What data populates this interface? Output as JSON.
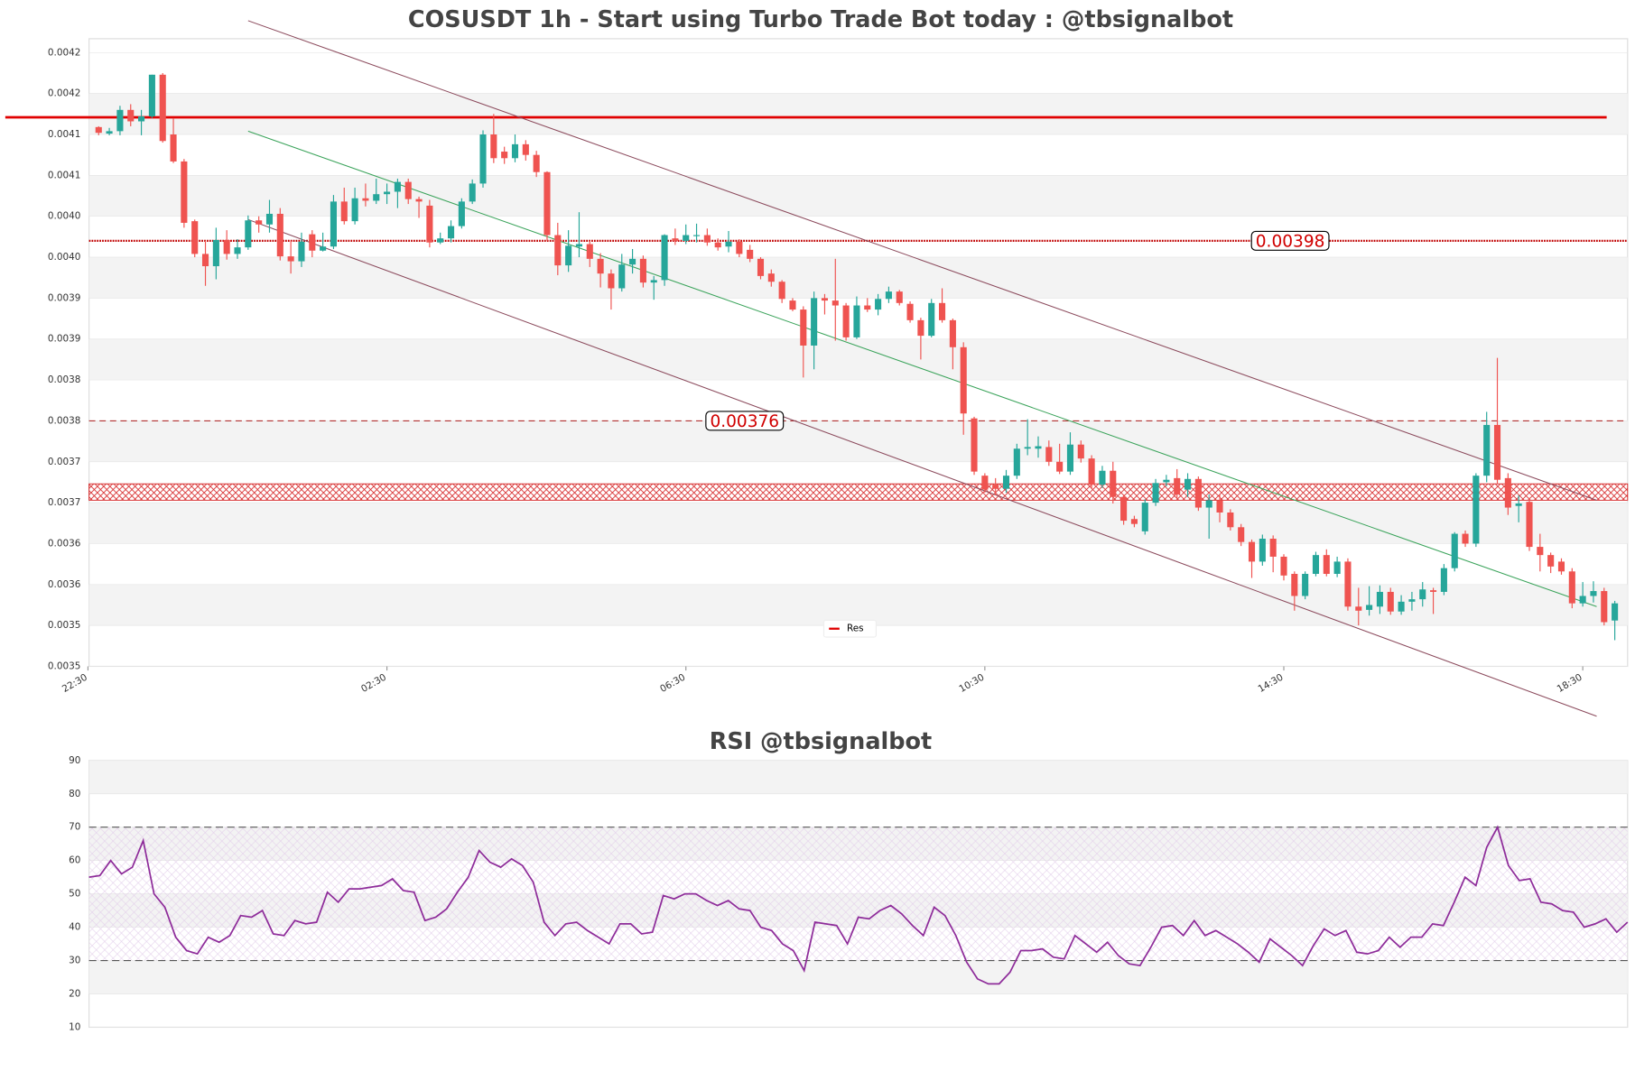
{
  "chart_data": [
    {
      "type": "candlestick",
      "title": "COSUSDT 1h - Start using Turbo Trade Bot today : @tbsignalbot",
      "up_color": "#26a69a",
      "down_color": "#ef5350",
      "open": [
        0.004119,
        0.004111,
        0.004114,
        0.00414,
        0.004126,
        0.004132,
        0.004183,
        0.00411,
        0.004077,
        0.004004,
        0.003964,
        0.003949,
        0.003981,
        0.003964,
        0.003972,
        0.004005,
        0.004,
        0.004013,
        0.003961,
        0.003955,
        0.003988,
        0.003968,
        0.003973,
        0.004028,
        0.004004,
        0.004032,
        0.004029,
        0.004037,
        0.00404,
        0.004052,
        0.004031,
        0.004023,
        0.003978,
        0.003983,
        0.003998,
        0.004028,
        0.00405,
        0.00411,
        0.004089,
        0.004081,
        0.004098,
        0.004085,
        0.004064,
        0.003987,
        0.00395,
        0.003973,
        0.003976,
        0.003958,
        0.00394,
        0.003922,
        0.003951,
        0.003958,
        0.003929,
        0.003932,
        0.003983,
        0.00398,
        0.003986,
        0.003987,
        0.003978,
        0.003973,
        0.003979,
        0.003969,
        0.003958,
        0.00394,
        0.00393,
        0.003907,
        0.003896,
        0.003852,
        0.00391,
        0.003907,
        0.003901,
        0.003862,
        0.003901,
        0.003896,
        0.003909,
        0.003918,
        0.003903,
        0.003883,
        0.003864,
        0.003904,
        0.003883,
        0.00385,
        0.003763,
        0.003693,
        0.003682,
        0.003677,
        0.003693,
        0.003726,
        0.003726,
        0.003728,
        0.00371,
        0.003698,
        0.003731,
        0.003714,
        0.003682,
        0.003699,
        0.003667,
        0.00364,
        0.003625,
        0.00366,
        0.003685,
        0.00369,
        0.003676,
        0.003689,
        0.003654,
        0.003663,
        0.003648,
        0.00363,
        0.003612,
        0.003588,
        0.003616,
        0.003594,
        0.003573,
        0.003546,
        0.003573,
        0.003596,
        0.003573,
        0.003588,
        0.003533,
        0.003529,
        0.003533,
        0.003551,
        0.003527,
        0.003539,
        0.003542,
        0.003553,
        0.003551,
        0.00358,
        0.003622,
        0.00361,
        0.003693,
        0.003755,
        0.00369,
        0.003656,
        0.003661,
        0.003606,
        0.003596,
        0.003588,
        0.003576,
        0.003537,
        0.003546,
        0.003552,
        0.003516
      ],
      "close": [
        0.004112,
        0.004114,
        0.00414,
        0.004126,
        0.004132,
        0.004183,
        0.004102,
        0.004077,
        0.004002,
        0.003964,
        0.003949,
        0.003981,
        0.003964,
        0.003972,
        0.004005,
        0.004,
        0.004013,
        0.003961,
        0.003955,
        0.003979,
        0.003968,
        0.003973,
        0.004028,
        0.004004,
        0.004032,
        0.004029,
        0.004037,
        0.00404,
        0.004052,
        0.004031,
        0.004028,
        0.003978,
        0.003983,
        0.003998,
        0.004028,
        0.00405,
        0.00411,
        0.004081,
        0.004081,
        0.004098,
        0.004085,
        0.004064,
        0.003987,
        0.00395,
        0.003974,
        0.003976,
        0.003958,
        0.00394,
        0.003922,
        0.003951,
        0.003958,
        0.003929,
        0.003932,
        0.003987,
        0.00398,
        0.003987,
        0.003987,
        0.003978,
        0.003972,
        0.003979,
        0.003964,
        0.003958,
        0.003937,
        0.00393,
        0.003909,
        0.003896,
        0.003852,
        0.00391,
        0.003907,
        0.003901,
        0.003862,
        0.003901,
        0.003896,
        0.003909,
        0.003918,
        0.003904,
        0.003883,
        0.003864,
        0.003904,
        0.003883,
        0.00385,
        0.003769,
        0.003698,
        0.003676,
        0.003677,
        0.003693,
        0.003726,
        0.003728,
        0.003729,
        0.00371,
        0.003698,
        0.003731,
        0.003714,
        0.003682,
        0.003699,
        0.003667,
        0.003638,
        0.003634,
        0.00366,
        0.003684,
        0.003688,
        0.00367,
        0.003689,
        0.003654,
        0.003663,
        0.003648,
        0.00363,
        0.003612,
        0.003588,
        0.003616,
        0.003594,
        0.003571,
        0.003546,
        0.003573,
        0.003596,
        0.003573,
        0.003588,
        0.003533,
        0.003528,
        0.003535,
        0.003551,
        0.003527,
        0.003539,
        0.003542,
        0.003554,
        0.003551,
        0.00358,
        0.003622,
        0.00361,
        0.003693,
        0.003755,
        0.003688,
        0.003654,
        0.003659,
        0.003606,
        0.003596,
        0.003582,
        0.003576,
        0.003537,
        0.003546,
        0.003552,
        0.003514,
        0.003537
      ],
      "high": [
        0.00412,
        0.004118,
        0.004145,
        0.004147,
        0.00414,
        0.004183,
        0.004185,
        0.00413,
        0.00408,
        0.004006,
        0.00398,
        0.003996,
        0.003993,
        0.003982,
        0.004011,
        0.00401,
        0.00403,
        0.00402,
        0.00398,
        0.00399,
        0.003993,
        0.00399,
        0.004036,
        0.004045,
        0.004045,
        0.00405,
        0.004056,
        0.00405,
        0.004056,
        0.004056,
        0.004034,
        0.00403,
        0.00399,
        0.004005,
        0.004032,
        0.004055,
        0.004115,
        0.004135,
        0.004095,
        0.00411,
        0.004103,
        0.00409,
        0.004065,
        0.004002,
        0.003993,
        0.004015,
        0.00398,
        0.003965,
        0.003945,
        0.003964,
        0.00397,
        0.003962,
        0.003937,
        0.003988,
        0.003995,
        0.004,
        0.004001,
        0.003995,
        0.003983,
        0.003992,
        0.003982,
        0.003975,
        0.00396,
        0.003945,
        0.003932,
        0.00391,
        0.0039,
        0.003918,
        0.003915,
        0.003958,
        0.003904,
        0.003912,
        0.00391,
        0.003915,
        0.003924,
        0.00392,
        0.003906,
        0.003886,
        0.003909,
        0.003922,
        0.003885,
        0.003856,
        0.003765,
        0.003696,
        0.00369,
        0.0037,
        0.003732,
        0.003762,
        0.003741,
        0.003736,
        0.003732,
        0.003746,
        0.003736,
        0.003718,
        0.003705,
        0.00371,
        0.00367,
        0.003644,
        0.003664,
        0.003689,
        0.003694,
        0.003701,
        0.003696,
        0.003692,
        0.00367,
        0.00367,
        0.003652,
        0.003634,
        0.003615,
        0.003621,
        0.00362,
        0.003597,
        0.003576,
        0.003576,
        0.0036,
        0.003603,
        0.003594,
        0.003592,
        0.003556,
        0.003558,
        0.003559,
        0.003556,
        0.003547,
        0.003551,
        0.003563,
        0.003556,
        0.003585,
        0.003624,
        0.003626,
        0.003696,
        0.003771,
        0.003837,
        0.003696,
        0.003669,
        0.003666,
        0.003622,
        0.003599,
        0.003592,
        0.00358,
        0.003563,
        0.003564,
        0.003556,
        0.00354
      ],
      "low": [
        0.004109,
        0.004109,
        0.004109,
        0.00412,
        0.004109,
        0.00413,
        0.0041,
        0.004075,
        0.003996,
        0.00396,
        0.003925,
        0.003933,
        0.003957,
        0.003958,
        0.003969,
        0.00399,
        0.00399,
        0.003956,
        0.00394,
        0.003948,
        0.00396,
        0.003967,
        0.00397,
        0.004,
        0.004,
        0.004022,
        0.004025,
        0.004025,
        0.00402,
        0.004025,
        0.004008,
        0.003972,
        0.003976,
        0.003978,
        0.003995,
        0.004025,
        0.004045,
        0.004075,
        0.004074,
        0.004076,
        0.004078,
        0.004058,
        0.00398,
        0.003938,
        0.003942,
        0.00396,
        0.003948,
        0.003923,
        0.003896,
        0.003918,
        0.00394,
        0.003923,
        0.003908,
        0.003925,
        0.003975,
        0.003976,
        0.003978,
        0.003974,
        0.003968,
        0.003966,
        0.00396,
        0.003954,
        0.003933,
        0.003924,
        0.003904,
        0.003894,
        0.003813,
        0.003823,
        0.00389,
        0.003858,
        0.003858,
        0.00386,
        0.003893,
        0.003889,
        0.003904,
        0.003901,
        0.00388,
        0.003835,
        0.003862,
        0.00388,
        0.003823,
        0.003743,
        0.003694,
        0.003672,
        0.003669,
        0.003672,
        0.003689,
        0.003718,
        0.003715,
        0.003705,
        0.003695,
        0.003694,
        0.003709,
        0.003677,
        0.003678,
        0.003659,
        0.003633,
        0.00363,
        0.003621,
        0.003656,
        0.00368,
        0.003665,
        0.003667,
        0.00365,
        0.003616,
        0.003636,
        0.003626,
        0.003607,
        0.003568,
        0.003583,
        0.003575,
        0.003565,
        0.003528,
        0.003542,
        0.00357,
        0.00357,
        0.003569,
        0.003528,
        0.00351,
        0.003522,
        0.003524,
        0.003523,
        0.003523,
        0.003528,
        0.003533,
        0.003524,
        0.003547,
        0.003576,
        0.003606,
        0.003606,
        0.003685,
        0.003683,
        0.003645,
        0.003636,
        0.003601,
        0.003576,
        0.003574,
        0.003572,
        0.003531,
        0.003533,
        0.003538,
        0.00351,
        0.003492
      ],
      "xlim": [
        -0.9,
        143.2
      ],
      "xticks": [
        {
          "value": -1,
          "label": "22:30"
        },
        {
          "value": 27,
          "label": "02:30"
        },
        {
          "value": 55,
          "label": "06:30"
        },
        {
          "value": 83,
          "label": "10:30"
        },
        {
          "value": 111,
          "label": "14:30"
        },
        {
          "value": 139,
          "label": "18:30"
        }
      ],
      "ylim": [
        0.00346,
        0.004227
      ],
      "yticks": [
        {
          "value": 0.00346,
          "label": "0.0035"
        },
        {
          "value": 0.00351,
          "label": "0.0035"
        },
        {
          "value": 0.00356,
          "label": "0.0036"
        },
        {
          "value": 0.00361,
          "label": "0.0036"
        },
        {
          "value": 0.00366,
          "label": "0.0037"
        },
        {
          "value": 0.00371,
          "label": "0.0037"
        },
        {
          "value": 0.00376,
          "label": "0.0038"
        },
        {
          "value": 0.00381,
          "label": "0.0038"
        },
        {
          "value": 0.00386,
          "label": "0.0039"
        },
        {
          "value": 0.00391,
          "label": "0.0039"
        },
        {
          "value": 0.00396,
          "label": "0.0040"
        },
        {
          "value": 0.00401,
          "label": "0.0040"
        },
        {
          "value": 0.00406,
          "label": "0.0041"
        },
        {
          "value": 0.00411,
          "label": "0.0041"
        },
        {
          "value": 0.00416,
          "label": "0.0042"
        },
        {
          "value": 0.00421,
          "label": "0.0042"
        }
      ],
      "hlines": [
        {
          "name": "Res",
          "value": 0.004131,
          "color": "#e00000",
          "style": "solid"
        },
        {
          "value": 0.00398,
          "color": "#c00000",
          "style": "dotted",
          "label": "0.00398",
          "label_at": 111.6
        },
        {
          "value": 0.00376,
          "color": "#b03030",
          "style": "dashed",
          "label": "0.00376",
          "label_at": 60.5
        }
      ],
      "zone": {
        "range": [
          0.003663,
          0.003683
        ],
        "color": "#d62728"
      },
      "trendlines": [
        {
          "start": [
            14,
            0.004249
          ],
          "end": [
            140.3,
            0.003663
          ],
          "color": "#8b4a5c"
        },
        {
          "start": [
            14,
            0.004006
          ],
          "end": [
            140.3,
            0.003399
          ],
          "color": "#8b4a5c"
        },
        {
          "start": [
            14,
            0.004114
          ],
          "end": [
            140.3,
            0.003533
          ],
          "color": "#3aa35a"
        }
      ],
      "legend": "lower center"
    },
    {
      "type": "line",
      "title": "RSI @tbsignalbot",
      "color": "#8e2c9a",
      "values": [
        55,
        55.5,
        60,
        56,
        58,
        66,
        50,
        46,
        37,
        33,
        32,
        37,
        35.5,
        37.5,
        43.5,
        43,
        45,
        38,
        37.5,
        42,
        41,
        41.5,
        50.5,
        47.5,
        51.5,
        51.5,
        52,
        52.5,
        54.5,
        51,
        50.5,
        42,
        43,
        45.5,
        50.5,
        55,
        63,
        59.5,
        58,
        60.5,
        58.5,
        53.5,
        41.5,
        37.5,
        41,
        41.5,
        39,
        37,
        35,
        41,
        41,
        38,
        38.5,
        49.5,
        48.5,
        50,
        50,
        48,
        46.5,
        48,
        45.5,
        45,
        40,
        39,
        35,
        33,
        27,
        41.5,
        41,
        40.5,
        35,
        43,
        42.5,
        45,
        46.5,
        44,
        40.5,
        37.5,
        46,
        43.5,
        37.5,
        29.5,
        24.5,
        23,
        23,
        26.5,
        33,
        33,
        33.5,
        31,
        30.5,
        37.5,
        35,
        32.5,
        35.5,
        31.5,
        29,
        28.5,
        34,
        40,
        40.5,
        37.5,
        42,
        37.5,
        39,
        37,
        35,
        32.5,
        29.5,
        36.5,
        34,
        31.5,
        28.5,
        34.5,
        39.5,
        37.5,
        39,
        32.5,
        32,
        33,
        37,
        34,
        37,
        37,
        41,
        40.5,
        47.5,
        55,
        52.5,
        64,
        70,
        58.5,
        54,
        54.5,
        47.5,
        47,
        45,
        44.5,
        40,
        41,
        42.5,
        38.5,
        41.5
      ],
      "ylim": [
        10,
        90
      ],
      "yticks": [
        10,
        20,
        30,
        40,
        50,
        60,
        70,
        80,
        90
      ],
      "hlines": [
        30,
        70
      ]
    }
  ]
}
